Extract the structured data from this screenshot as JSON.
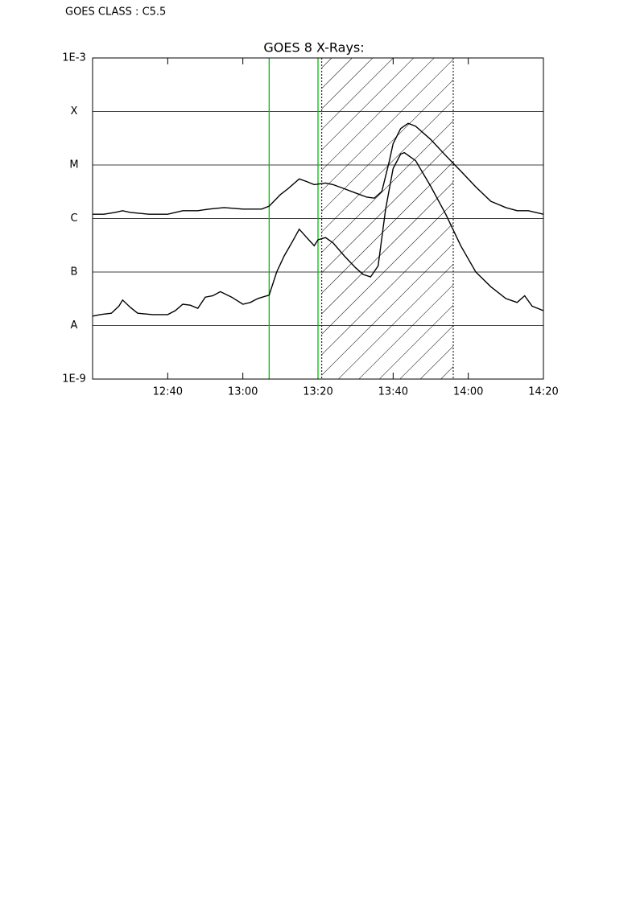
{
  "header": "GOES CLASS : C5.5",
  "chart_data": {
    "type": "line",
    "title": "GOES 8 X-Rays:",
    "log_y": true,
    "grid": true,
    "xlim": [
      "12:20",
      "14:20"
    ],
    "xticks": [
      "12:40",
      "13:00",
      "13:20",
      "13:40",
      "14:00",
      "14:20"
    ],
    "ylim": [
      1e-09,
      0.001
    ],
    "yticks": [
      {
        "value": 1e-09,
        "label": "1E-9"
      },
      {
        "value": 1e-08,
        "label": "A"
      },
      {
        "value": 1e-07,
        "label": "B"
      },
      {
        "value": 1e-06,
        "label": "C"
      },
      {
        "value": 1e-05,
        "label": "M"
      },
      {
        "value": 0.0001,
        "label": "X"
      },
      {
        "value": 0.001,
        "label": "1E-3"
      }
    ],
    "vlines": [
      {
        "x": "13:07",
        "color": "#00c000"
      },
      {
        "x": "13:20",
        "color": "#00c000"
      }
    ],
    "hatched_span": {
      "x": [
        "13:21",
        "13:56"
      ],
      "color": "#000000"
    },
    "series": [
      {
        "color": "#000000",
        "x": [
          "12:20",
          "12:23",
          "12:26",
          "12:28",
          "12:30",
          "12:35",
          "12:40",
          "12:44",
          "12:48",
          "12:51",
          "12:55",
          "13:00",
          "13:05",
          "13:07",
          "13:10",
          "13:12",
          "13:15",
          "13:17",
          "13:19",
          "13:22",
          "13:24",
          "13:27",
          "13:30",
          "13:33",
          "13:35",
          "13:37",
          "13:39",
          "13:40",
          "13:42",
          "13:44",
          "13:46",
          "13:50",
          "13:54",
          "13:58",
          "14:02",
          "14:06",
          "14:10",
          "14:13",
          "14:16",
          "14:20"
        ],
        "values": [
          1.2e-06,
          1.2e-06,
          1.3e-06,
          1.4e-06,
          1.3e-06,
          1.2e-06,
          1.2e-06,
          1.4e-06,
          1.4e-06,
          1.5e-06,
          1.6e-06,
          1.5e-06,
          1.5e-06,
          1.7e-06,
          2.8e-06,
          3.6e-06,
          5.5e-06,
          4.9e-06,
          4.3e-06,
          4.6e-06,
          4.3e-06,
          3.6e-06,
          3e-06,
          2.5e-06,
          2.4e-06,
          3.2e-06,
          1.2e-05,
          2.5e-05,
          4.8e-05,
          6e-05,
          5.3e-05,
          3e-05,
          1.5e-05,
          7.7e-06,
          3.9e-06,
          2.1e-06,
          1.6e-06,
          1.4e-06,
          1.4e-06,
          1.2e-06
        ]
      },
      {
        "color": "#000000",
        "x": [
          "12:20",
          "12:22",
          "12:25",
          "12:27",
          "12:28",
          "12:30",
          "12:32",
          "12:36",
          "12:38",
          "12:40",
          "12:42",
          "12:44",
          "12:46",
          "12:48",
          "12:50",
          "12:52",
          "12:54",
          "12:57",
          "13:00",
          "13:02",
          "13:04",
          "13:07",
          "13:09",
          "13:11",
          "13:13",
          "13:15",
          "13:17",
          "13:19",
          "13:20",
          "13:22",
          "13:24",
          "13:27",
          "13:30",
          "13:32",
          "13:34",
          "13:36",
          "13:38",
          "13:40",
          "13:42",
          "13:43",
          "13:46",
          "13:50",
          "13:54",
          "13:58",
          "14:02",
          "14:06",
          "14:10",
          "14:13",
          "14:15",
          "14:17",
          "14:20"
        ],
        "values": [
          1.5e-08,
          1.6e-08,
          1.7e-08,
          2.3e-08,
          3e-08,
          2.2e-08,
          1.7e-08,
          1.6e-08,
          1.6e-08,
          1.6e-08,
          1.9e-08,
          2.5e-08,
          2.4e-08,
          2.1e-08,
          3.4e-08,
          3.6e-08,
          4.3e-08,
          3.4e-08,
          2.5e-08,
          2.7e-08,
          3.2e-08,
          3.7e-08,
          1e-07,
          2e-07,
          3.5e-07,
          6.3e-07,
          4.4e-07,
          3.1e-07,
          4e-07,
          4.4e-07,
          3.5e-07,
          2e-07,
          1.2e-07,
          9e-08,
          8.1e-08,
          1.3e-07,
          1.5e-06,
          8.6e-06,
          1.6e-05,
          1.7e-05,
          1.2e-05,
          4e-06,
          1.2e-06,
          3.1e-07,
          1e-07,
          5.3e-08,
          3.2e-08,
          2.7e-08,
          3.6e-08,
          2.3e-08,
          1.9e-08
        ]
      }
    ]
  }
}
